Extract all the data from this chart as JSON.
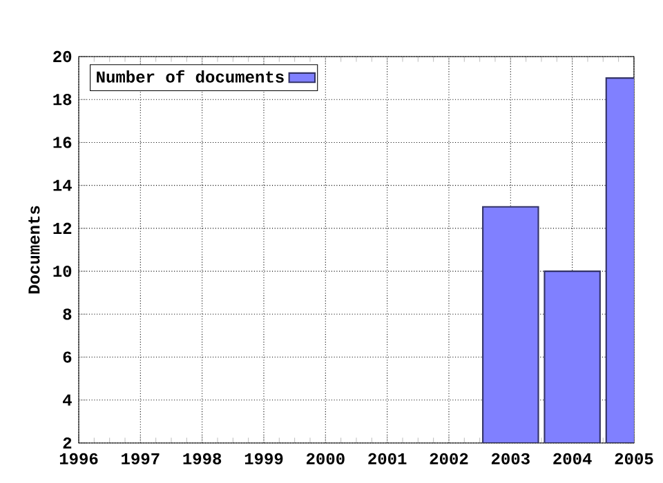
{
  "chart_data": {
    "type": "bar",
    "ylabel": "Documents",
    "x": [
      2003,
      2004,
      2005
    ],
    "series": [
      {
        "name": "Number of documents",
        "color": "#8080ff",
        "values": [
          13,
          10,
          19
        ]
      }
    ],
    "xlim": [
      1996,
      2005
    ],
    "xticks": [
      1996,
      1997,
      1998,
      1999,
      2000,
      2001,
      2002,
      2003,
      2004,
      2005
    ],
    "ylim": [
      2,
      20
    ],
    "yticks": [
      2,
      4,
      6,
      8,
      10,
      12,
      14,
      16,
      18,
      20
    ],
    "grid": true,
    "legend": "top left"
  }
}
